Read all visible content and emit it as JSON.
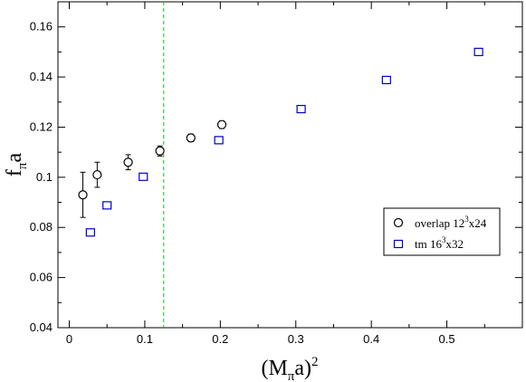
{
  "chart_data": {
    "type": "scatter",
    "xlabel": {
      "main": "(M",
      "sub": "π",
      "tail": "a)",
      "sup": "2"
    },
    "ylabel": {
      "main": "f",
      "sub": "π",
      "tail": "a"
    },
    "xlim": [
      -0.015,
      0.6
    ],
    "ylim": [
      0.04,
      0.17
    ],
    "x_ticks": [
      0,
      0.1,
      0.2,
      0.3,
      0.4,
      0.5
    ],
    "x_tick_labels": [
      "0",
      "0.1",
      "0.2",
      "0.3",
      "0.4",
      "0.5"
    ],
    "y_ticks": [
      0.04,
      0.06,
      0.08,
      0.1,
      0.12,
      0.14,
      0.16
    ],
    "y_tick_labels": [
      "0.04",
      "0.06",
      "0.08",
      "0.1",
      "0.12",
      "0.14",
      "0.16"
    ],
    "vline_x": 0.125,
    "vline_color": "#00cc00",
    "legend_position": "right",
    "series": [
      {
        "legend": {
          "pre": "overlap 12",
          "sup": "3",
          "post": "x24"
        },
        "marker": "circle",
        "color": "#000000",
        "points": [
          {
            "x": 0.018,
            "y": 0.093,
            "err": 0.009
          },
          {
            "x": 0.037,
            "y": 0.101,
            "err": 0.005
          },
          {
            "x": 0.078,
            "y": 0.106,
            "err": 0.003
          },
          {
            "x": 0.12,
            "y": 0.1105,
            "err": 0.002
          },
          {
            "x": 0.161,
            "y": 0.1157,
            "err": 0.0015
          },
          {
            "x": 0.202,
            "y": 0.121,
            "err": 0.0015
          }
        ]
      },
      {
        "legend": {
          "pre": "tm 16",
          "sup": "3",
          "post": "x32"
        },
        "marker": "square",
        "color": "#0000cc",
        "points": [
          {
            "x": 0.028,
            "y": 0.078,
            "err": 0.0006
          },
          {
            "x": 0.05,
            "y": 0.0888,
            "err": 0.0006
          },
          {
            "x": 0.098,
            "y": 0.1002,
            "err": 0.0006
          },
          {
            "x": 0.198,
            "y": 0.1148,
            "err": 0.0006
          },
          {
            "x": 0.307,
            "y": 0.1272,
            "err": 0.0006
          },
          {
            "x": 0.42,
            "y": 0.1388,
            "err": 0.0006
          },
          {
            "x": 0.542,
            "y": 0.15,
            "err": 0.0006
          }
        ]
      }
    ]
  }
}
